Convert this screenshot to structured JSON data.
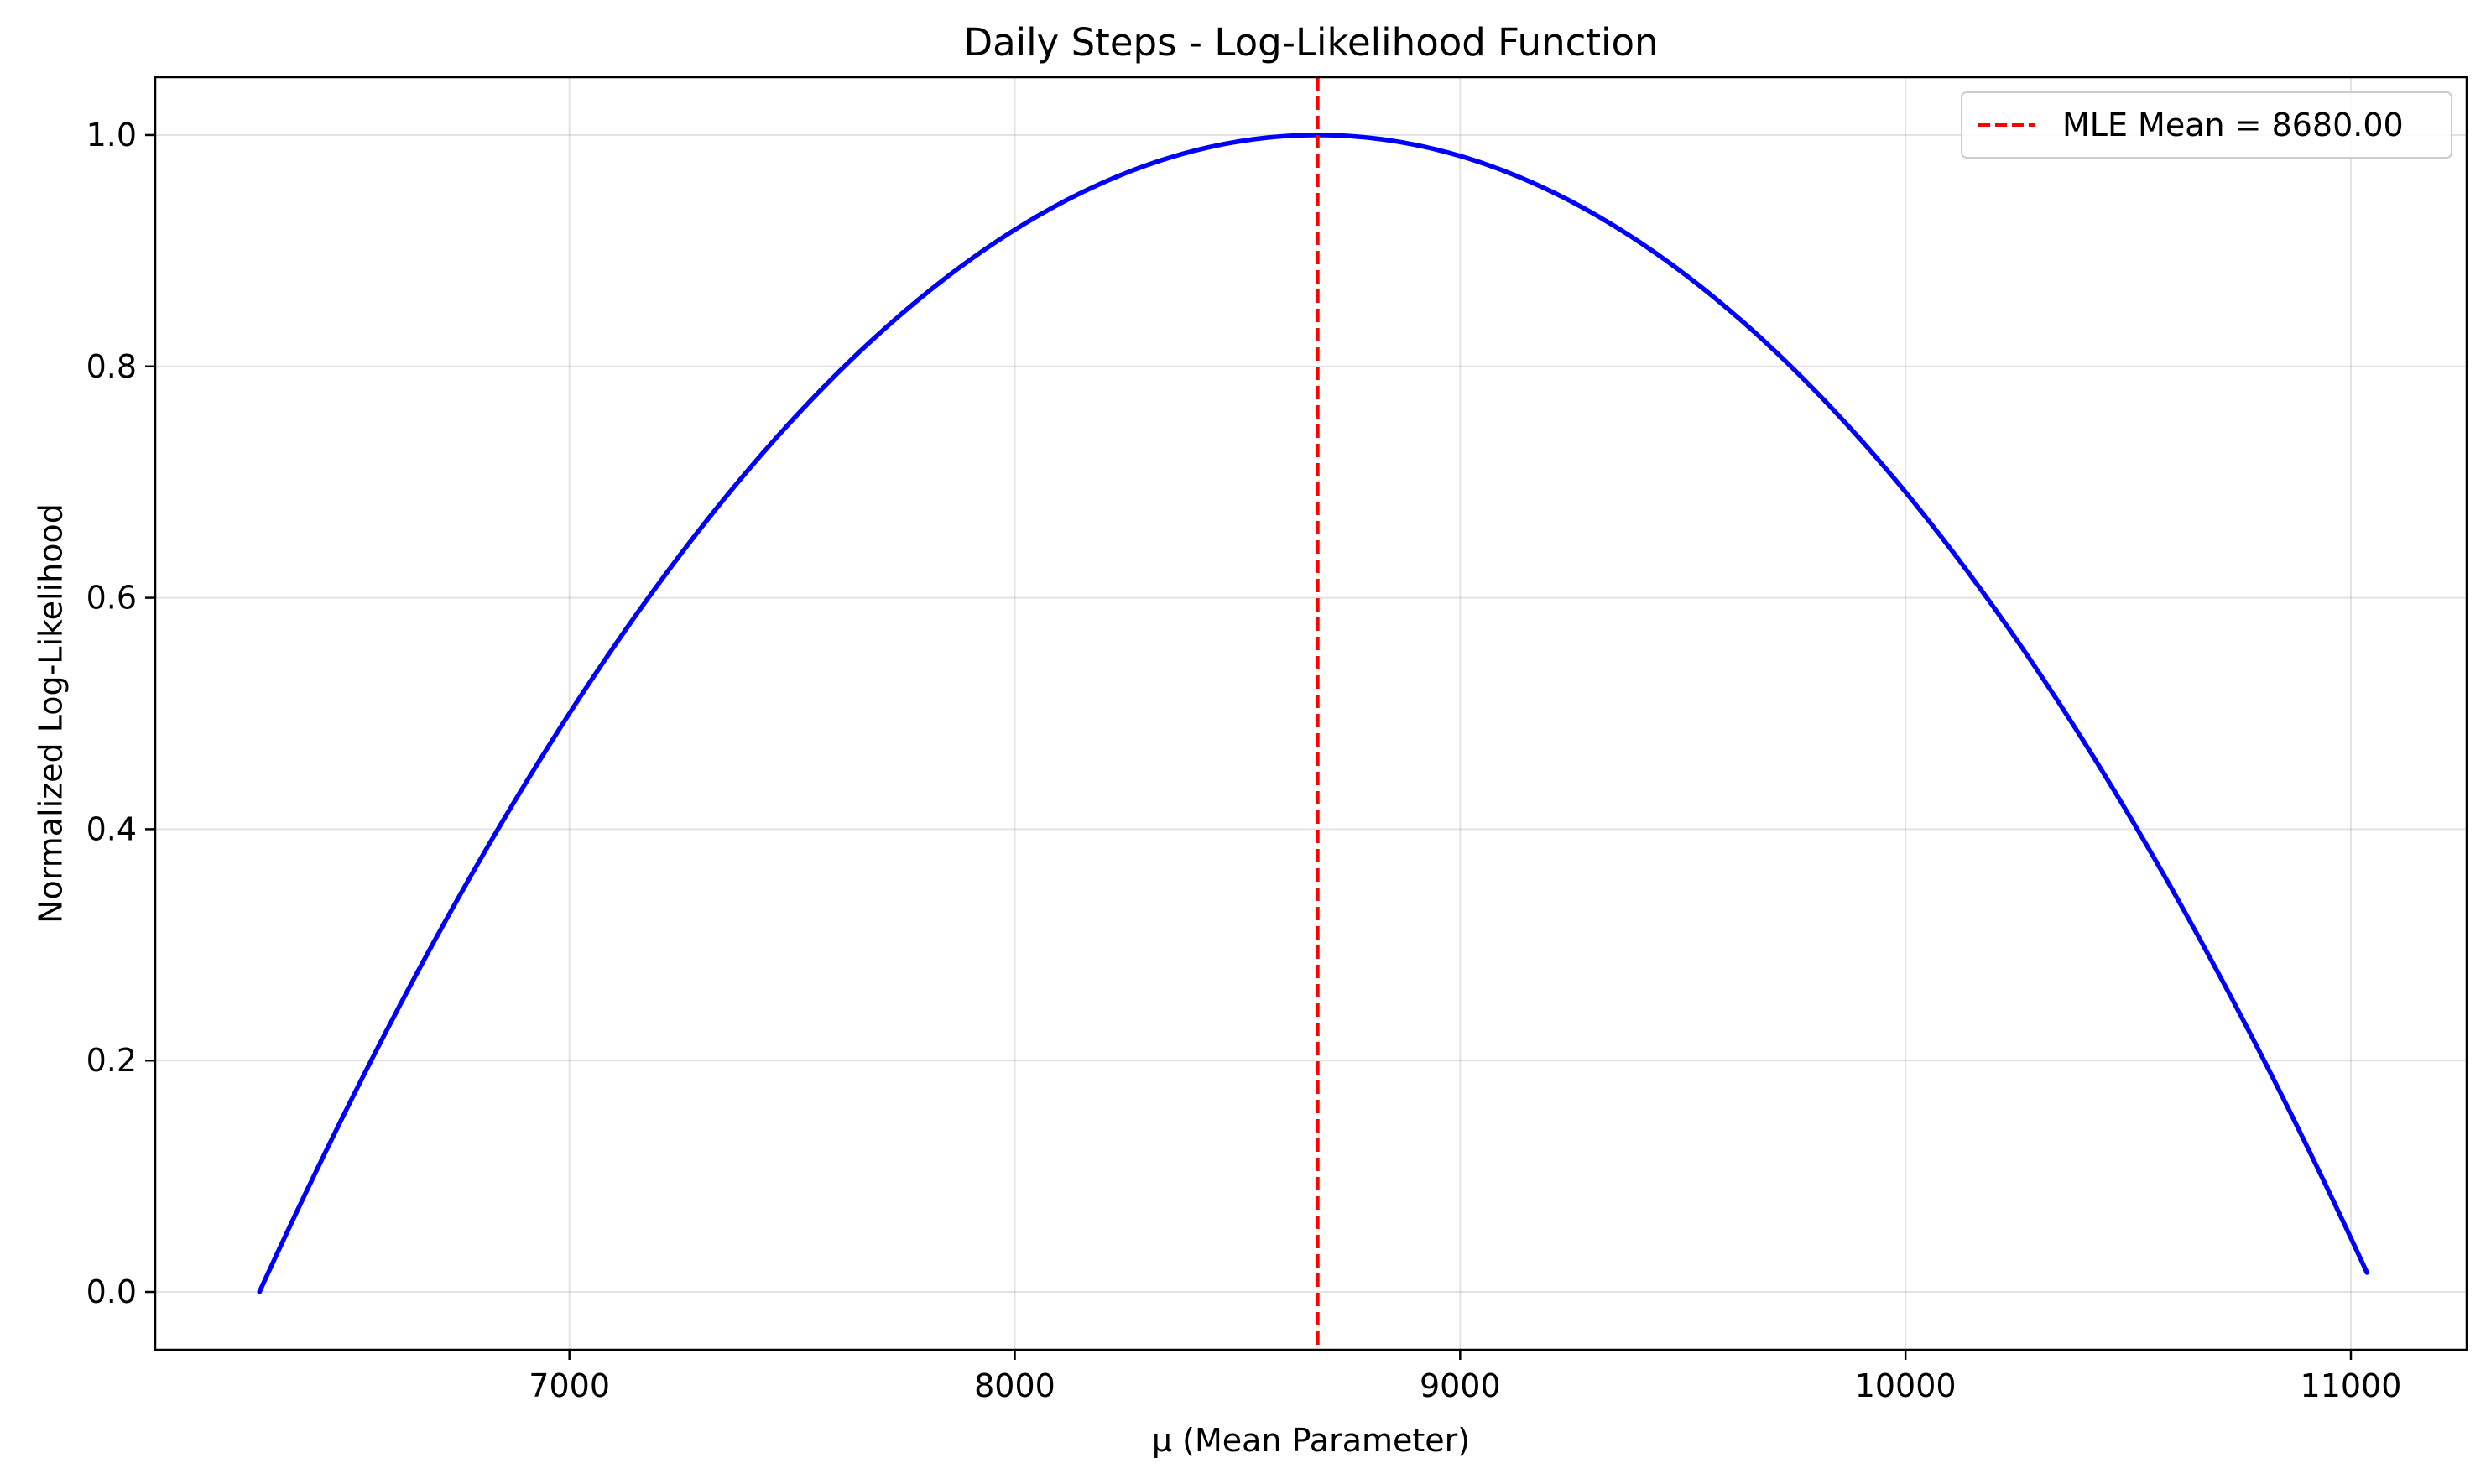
{
  "chart_data": {
    "type": "line",
    "title": "Daily Steps - Log-Likelihood Function",
    "xlabel": "μ (Mean Parameter)",
    "ylabel": "Normalized Log-Likelihood",
    "xlim": [
      6070,
      11260
    ],
    "ylim": [
      -0.05,
      1.05
    ],
    "xticks": [
      7000,
      8000,
      9000,
      10000,
      11000
    ],
    "xtick_labels": [
      "7000",
      "8000",
      "9000",
      "10000",
      "11000"
    ],
    "yticks": [
      0.0,
      0.2,
      0.4,
      0.6,
      0.8,
      1.0
    ],
    "ytick_labels": [
      "0.0",
      "0.2",
      "0.4",
      "0.6",
      "0.8",
      "1.0"
    ],
    "grid": true,
    "legend_position": "top-right",
    "series": [
      {
        "kind": "curve",
        "color": "#0000ff",
        "style": "solid",
        "x_range": [
          6304,
          11036
        ],
        "peak_x": 8680,
        "peak_y": 1.0,
        "end_y": 0.0
      }
    ],
    "reference_lines": [
      {
        "name": "MLE Mean = 8680.00",
        "orientation": "vertical",
        "x": 8680,
        "color": "#ff0000",
        "style": "dashed"
      }
    ]
  }
}
